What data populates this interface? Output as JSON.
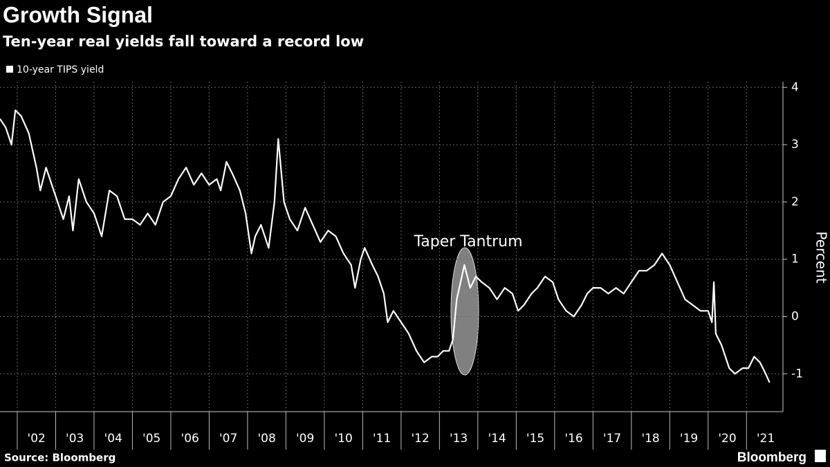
{
  "chart_data": {
    "type": "line",
    "title": "Growth Signal",
    "subtitle": "Ten-year real yields fall toward a record low",
    "y_label": "Percent",
    "source": "Source: Bloomberg",
    "brand": "Bloomberg",
    "annotation": "Taper Tantrum",
    "legend": "top-left",
    "grid": true,
    "xlim": [
      2001.55,
      2021.95
    ],
    "xticks": [
      {
        "value": 2002,
        "label": "'02"
      },
      {
        "value": 2003,
        "label": "'03"
      },
      {
        "value": 2004,
        "label": "'04"
      },
      {
        "value": 2005,
        "label": "'05"
      },
      {
        "value": 2006,
        "label": "'06"
      },
      {
        "value": 2007,
        "label": "'07"
      },
      {
        "value": 2008,
        "label": "'08"
      },
      {
        "value": 2009,
        "label": "'09"
      },
      {
        "value": 2010,
        "label": "'10"
      },
      {
        "value": 2011,
        "label": "'11"
      },
      {
        "value": 2012,
        "label": "'12"
      },
      {
        "value": 2013,
        "label": "'13"
      },
      {
        "value": 2014,
        "label": "'14"
      },
      {
        "value": 2015,
        "label": "'15"
      },
      {
        "value": 2016,
        "label": "'16"
      },
      {
        "value": 2017,
        "label": "'17"
      },
      {
        "value": 2018,
        "label": "'18"
      },
      {
        "value": 2019,
        "label": "'19"
      },
      {
        "value": 2020,
        "label": "'20"
      },
      {
        "value": 2021,
        "label": "'21"
      }
    ],
    "ylim": [
      -1.66,
      4.1
    ],
    "yticks": [
      4,
      3,
      2,
      1,
      0,
      -1
    ],
    "x": [
      2001.55,
      2001.7,
      2001.85,
      2001.95,
      2002.1,
      2002.3,
      2002.5,
      2002.6,
      2002.75,
      2002.9,
      2003.0,
      2003.2,
      2003.35,
      2003.45,
      2003.6,
      2003.8,
      2004.0,
      2004.2,
      2004.4,
      2004.6,
      2004.8,
      2005.0,
      2005.2,
      2005.4,
      2005.6,
      2005.8,
      2006.0,
      2006.2,
      2006.4,
      2006.6,
      2006.8,
      2007.0,
      2007.2,
      2007.3,
      2007.45,
      2007.6,
      2007.8,
      2007.95,
      2008.1,
      2008.2,
      2008.35,
      2008.55,
      2008.7,
      2008.8,
      2008.95,
      2009.1,
      2009.3,
      2009.5,
      2009.7,
      2009.9,
      2010.1,
      2010.3,
      2010.5,
      2010.7,
      2010.8,
      2010.95,
      2011.05,
      2011.25,
      2011.4,
      2011.55,
      2011.65,
      2011.8,
      2012.0,
      2012.2,
      2012.4,
      2012.6,
      2012.8,
      2012.95,
      2013.1,
      2013.25,
      2013.35,
      2013.45,
      2013.55,
      2013.65,
      2013.8,
      2013.95,
      2014.1,
      2014.3,
      2014.5,
      2014.7,
      2014.9,
      2015.05,
      2015.2,
      2015.4,
      2015.55,
      2015.75,
      2015.95,
      2016.1,
      2016.3,
      2016.5,
      2016.7,
      2016.85,
      2017.0,
      2017.2,
      2017.4,
      2017.6,
      2017.8,
      2018.0,
      2018.2,
      2018.4,
      2018.6,
      2018.8,
      2019.0,
      2019.2,
      2019.4,
      2019.6,
      2019.8,
      2020.0,
      2020.1,
      2020.15,
      2020.2,
      2020.35,
      2020.55,
      2020.7,
      2020.9,
      2021.05,
      2021.2,
      2021.35,
      2021.5,
      2021.6
    ],
    "series": [
      {
        "name": "10-year TIPS yield",
        "color": "#ffffff",
        "values": [
          3.45,
          3.3,
          3.0,
          3.6,
          3.5,
          3.2,
          2.6,
          2.2,
          2.6,
          2.3,
          2.1,
          1.7,
          2.1,
          1.5,
          2.4,
          2.0,
          1.8,
          1.4,
          2.2,
          2.1,
          1.7,
          1.7,
          1.6,
          1.8,
          1.6,
          2.0,
          2.1,
          2.4,
          2.6,
          2.3,
          2.5,
          2.3,
          2.4,
          2.2,
          2.7,
          2.5,
          2.2,
          1.8,
          1.1,
          1.4,
          1.6,
          1.2,
          2.0,
          3.1,
          2.0,
          1.7,
          1.5,
          1.9,
          1.6,
          1.3,
          1.5,
          1.4,
          1.1,
          0.9,
          0.5,
          1.0,
          1.2,
          0.9,
          0.7,
          0.4,
          -0.1,
          0.1,
          -0.1,
          -0.3,
          -0.6,
          -0.8,
          -0.7,
          -0.7,
          -0.6,
          -0.6,
          -0.4,
          0.3,
          0.6,
          0.9,
          0.5,
          0.7,
          0.6,
          0.5,
          0.3,
          0.5,
          0.4,
          0.1,
          0.2,
          0.4,
          0.5,
          0.7,
          0.6,
          0.3,
          0.1,
          0.0,
          0.2,
          0.4,
          0.5,
          0.5,
          0.4,
          0.5,
          0.4,
          0.6,
          0.8,
          0.8,
          0.9,
          1.1,
          0.9,
          0.6,
          0.3,
          0.2,
          0.1,
          0.1,
          -0.1,
          0.6,
          -0.3,
          -0.5,
          -0.9,
          -1.0,
          -0.9,
          -0.9,
          -0.7,
          -0.8,
          -1.0,
          -1.15
        ]
      }
    ]
  }
}
